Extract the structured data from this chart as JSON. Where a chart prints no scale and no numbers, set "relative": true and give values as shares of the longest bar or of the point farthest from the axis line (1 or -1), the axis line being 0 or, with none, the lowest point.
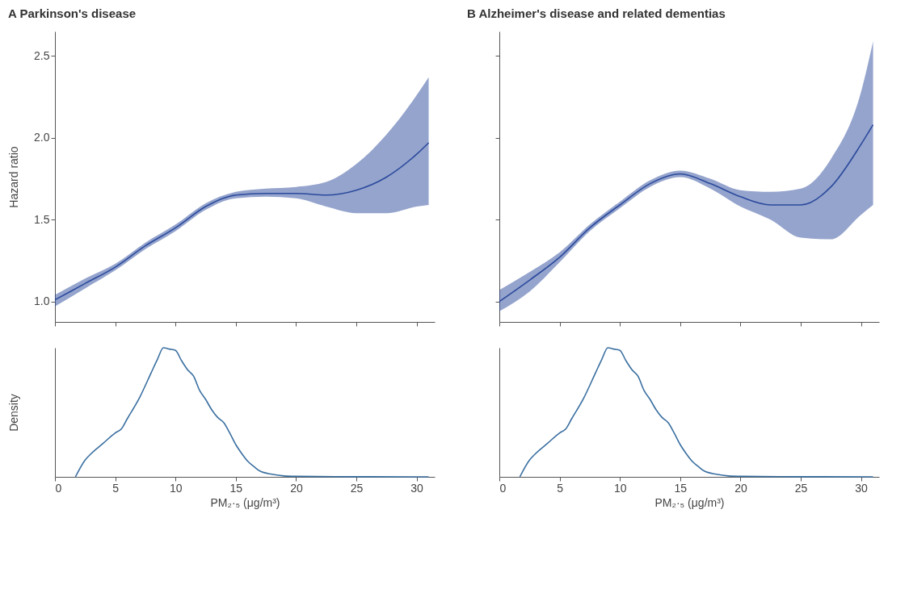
{
  "chart_data": [
    {
      "type": "line",
      "title": "A  Parkinson's disease",
      "ylabel": "Hazard ratio",
      "tick_labels": "y",
      "marker": "none",
      "x": [
        0,
        2.5,
        5,
        7.5,
        10,
        12.5,
        15,
        17.5,
        20,
        22.5,
        25,
        27.5,
        30,
        31
      ],
      "series": [
        {
          "color": "#2b4a9c",
          "values": [
            1.01,
            1.11,
            1.21,
            1.34,
            1.45,
            1.58,
            1.65,
            1.66,
            1.66,
            1.65,
            1.68,
            1.76,
            1.9,
            1.97
          ],
          "lower": [
            0.97,
            1.08,
            1.19,
            1.32,
            1.43,
            1.56,
            1.63,
            1.64,
            1.63,
            1.58,
            1.54,
            1.54,
            1.58,
            1.59
          ],
          "upper": [
            1.04,
            1.14,
            1.23,
            1.36,
            1.47,
            1.6,
            1.67,
            1.69,
            1.7,
            1.73,
            1.84,
            2.02,
            2.26,
            2.37
          ]
        }
      ],
      "xlim": [
        0,
        31.5
      ],
      "xticks": [
        0,
        5,
        10,
        15,
        20,
        25,
        30
      ],
      "ylim": [
        0.875,
        2.65
      ],
      "yticks": [
        {
          "value": 1.0,
          "label": "1.0"
        },
        {
          "value": 1.5,
          "label": "1.5"
        },
        {
          "value": 2.0,
          "label": "2.0"
        },
        {
          "value": 2.5,
          "label": "2.5"
        }
      ]
    },
    {
      "type": "line",
      "title": "B  Alzheimer's disease and related dementias",
      "tick_labels": false,
      "marker": "none",
      "x": [
        0,
        2.5,
        5,
        7.5,
        10,
        12.5,
        15,
        17.5,
        20,
        22.5,
        25,
        27.5,
        30,
        31
      ],
      "series": [
        {
          "color": "#2b4a9c",
          "values": [
            1.0,
            1.13,
            1.27,
            1.45,
            1.59,
            1.72,
            1.78,
            1.72,
            1.64,
            1.59,
            1.59,
            1.7,
            1.96,
            2.08
          ],
          "lower": [
            0.94,
            1.06,
            1.24,
            1.43,
            1.57,
            1.7,
            1.76,
            1.69,
            1.58,
            1.5,
            1.39,
            1.38,
            1.53,
            1.59
          ],
          "upper": [
            1.07,
            1.18,
            1.3,
            1.47,
            1.61,
            1.74,
            1.8,
            1.75,
            1.68,
            1.67,
            1.69,
            1.87,
            2.28,
            2.59
          ]
        }
      ],
      "xlim": [
        0,
        31.5
      ],
      "xticks": [
        0,
        5,
        10,
        15,
        20,
        25,
        30
      ],
      "ylim": [
        0.875,
        2.65
      ],
      "yticks": [
        1.0,
        1.5,
        2.0,
        2.5
      ]
    },
    {
      "type": "line",
      "relative": true,
      "ylabel": "Density",
      "xlabel": "PM₂·₅ (μg/m³)",
      "tick_labels": "x",
      "marker": "none",
      "x": [
        1.7,
        2.5,
        3,
        4,
        5,
        5.5,
        6,
        7,
        8,
        8.5,
        9,
        9.5,
        10,
        10.5,
        11,
        11.5,
        12,
        12.5,
        13,
        13.5,
        14,
        14.5,
        15,
        15.5,
        16,
        16.5,
        17,
        18,
        19,
        20,
        25,
        31
      ],
      "series": [
        {
          "color": "#3a6fa0",
          "values": [
            0,
            0.13,
            0.18,
            0.26,
            0.34,
            0.37,
            0.45,
            0.61,
            0.81,
            0.91,
            1,
            0.99,
            0.98,
            0.9,
            0.83,
            0.78,
            0.67,
            0.6,
            0.52,
            0.46,
            0.42,
            0.34,
            0.25,
            0.18,
            0.12,
            0.08,
            0.045,
            0.02,
            0.007,
            0.004,
            0.001,
            0
          ]
        }
      ],
      "xlim": [
        0,
        31.5
      ],
      "xticks": [
        0,
        5,
        10,
        15,
        20,
        25,
        30
      ]
    },
    {
      "type": "line",
      "relative": true,
      "xlabel": "PM₂·₅ (μg/m³)",
      "tick_labels": "x",
      "marker": "none",
      "x": [
        1.7,
        2.5,
        3,
        4,
        5,
        5.5,
        6,
        7,
        8,
        8.5,
        9,
        9.5,
        10,
        10.5,
        11,
        11.5,
        12,
        12.5,
        13,
        13.5,
        14,
        14.5,
        15,
        15.5,
        16,
        16.5,
        17,
        18,
        19,
        20,
        25,
        31
      ],
      "series": [
        {
          "color": "#3a6fa0",
          "values": [
            0,
            0.13,
            0.18,
            0.26,
            0.34,
            0.37,
            0.45,
            0.61,
            0.81,
            0.91,
            1,
            0.99,
            0.98,
            0.9,
            0.83,
            0.78,
            0.67,
            0.6,
            0.52,
            0.46,
            0.42,
            0.34,
            0.25,
            0.18,
            0.12,
            0.08,
            0.045,
            0.02,
            0.007,
            0.004,
            0.001,
            0
          ]
        }
      ],
      "xlim": [
        0,
        31.5
      ],
      "xticks": [
        0,
        5,
        10,
        15,
        20,
        25,
        30
      ]
    }
  ]
}
